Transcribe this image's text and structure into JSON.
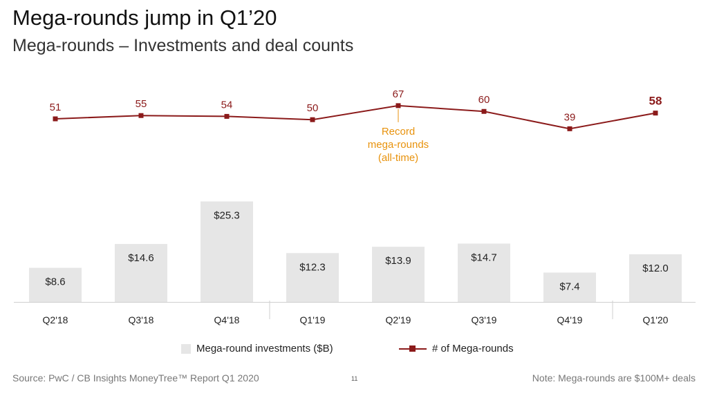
{
  "header": {
    "title": "Mega-rounds jump in Q1’20",
    "subtitle": "Mega-rounds – Investments and deal counts"
  },
  "chart_data": {
    "type": "bar+line",
    "categories": [
      "Q2'18",
      "Q3'18",
      "Q4'18",
      "Q1'19",
      "Q2'19",
      "Q3'19",
      "Q4'19",
      "Q1'20"
    ],
    "series": [
      {
        "name": "Mega-round investments ($B)",
        "type": "bar",
        "values": [
          8.6,
          14.6,
          25.3,
          12.3,
          13.9,
          14.7,
          7.4,
          12.0
        ],
        "labels": [
          "$8.6",
          "$14.6",
          "$25.3",
          "$12.3",
          "$13.9",
          "$14.7",
          "$7.4",
          "$12.0"
        ],
        "color": "#e6e6e6"
      },
      {
        "name": "# of Mega-rounds",
        "type": "line",
        "values": [
          51,
          55,
          54,
          50,
          67,
          60,
          39,
          58
        ],
        "color": "#8b1a1a"
      }
    ],
    "annotation": {
      "category": "Q2'19",
      "lines": [
        "Record",
        "mega-rounds",
        "(all-time)"
      ],
      "color": "#e8920c"
    },
    "highlight_category": "Q1'20",
    "year_separators_after": [
      "Q4'18",
      "Q4'19"
    ]
  },
  "legend": {
    "bar_label": "Mega-round investments ($B)",
    "line_label": "# of Mega-rounds"
  },
  "footer": {
    "source": "Source: PwC / CB Insights MoneyTree™ Report Q1 2020",
    "page_number": "11",
    "note": "Note: Mega-rounds are $100M+ deals"
  }
}
